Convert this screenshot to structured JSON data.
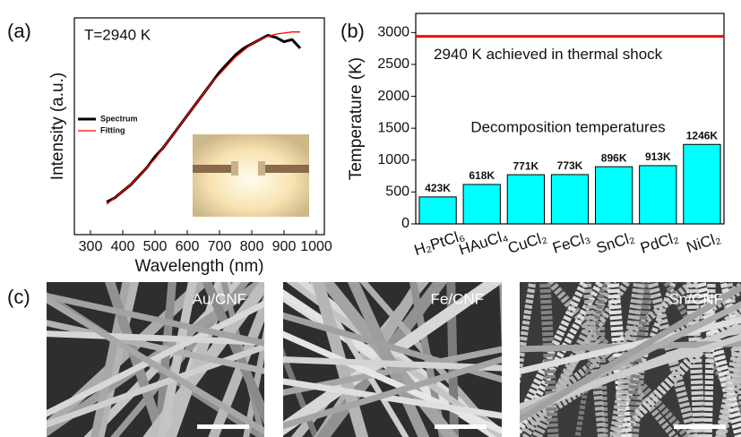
{
  "chart_data": [
    {
      "type": "line",
      "label": "(a)",
      "annotation": "T=2940 K",
      "x_label": "Wavelength (nm)",
      "y_label": "Intensity (a.u.)",
      "x": [
        350,
        375,
        400,
        425,
        450,
        475,
        500,
        525,
        550,
        575,
        600,
        625,
        650,
        675,
        700,
        725,
        750,
        775,
        800,
        825,
        850,
        875,
        900,
        925,
        950
      ],
      "series": [
        {
          "name": "Spectrum",
          "color": "#000000",
          "values": [
            0.15,
            0.17,
            0.2,
            0.23,
            0.27,
            0.31,
            0.36,
            0.4,
            0.45,
            0.5,
            0.55,
            0.6,
            0.65,
            0.7,
            0.75,
            0.79,
            0.83,
            0.86,
            0.88,
            0.9,
            0.92,
            0.91,
            0.89,
            0.9,
            0.86
          ]
        },
        {
          "name": "Fitting",
          "color": "#ff0000",
          "values": [
            0.14,
            0.17,
            0.2,
            0.23,
            0.27,
            0.31,
            0.35,
            0.4,
            0.45,
            0.5,
            0.55,
            0.6,
            0.65,
            0.7,
            0.74,
            0.78,
            0.82,
            0.85,
            0.88,
            0.9,
            0.915,
            0.925,
            0.93,
            0.935,
            0.935
          ]
        }
      ],
      "xlim": [
        250,
        1025
      ],
      "xticks": [
        300,
        400,
        500,
        600,
        700,
        800,
        900,
        1000
      ],
      "ylim": [
        0,
        1
      ]
    },
    {
      "type": "bar",
      "label": "(b)",
      "annotation": "Decomposition temperatures",
      "y_label": "Temperature (K)",
      "categories": [
        "H₂PtCl₆",
        "HAuCl₄",
        "CuCl₂",
        "FeCl₃",
        "SnCl₂",
        "PdCl₂",
        "NiCl₂"
      ],
      "values": [
        423,
        618,
        771,
        773,
        896,
        913,
        1246
      ],
      "value_labels": [
        "423K",
        "618K",
        "771K",
        "773K",
        "896K",
        "913K",
        "1246K"
      ],
      "color": "#00ffff",
      "reference_line": {
        "value": 2940,
        "color": "#ff0000",
        "label": "2940 K achieved in thermal shock"
      },
      "ylim": [
        0,
        3300
      ],
      "yticks": [
        0,
        500,
        1000,
        1500,
        2000,
        2500,
        3000
      ]
    }
  ],
  "images": {
    "label": "(c)",
    "captions": [
      "Au/CNF",
      "Fe/CNF",
      "Sn/CNF"
    ]
  }
}
